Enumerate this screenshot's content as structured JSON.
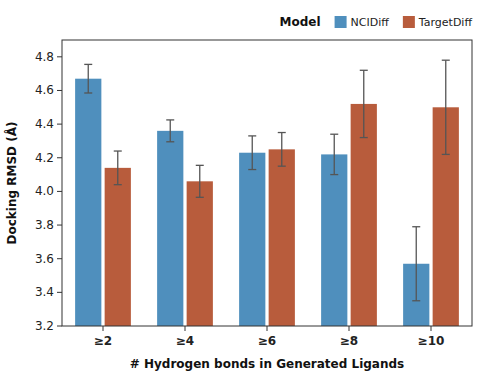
{
  "chart_data": {
    "type": "bar",
    "xlabel": "# Hydrogen bonds in Generated Ligands",
    "ylabel": "Docking RMSD (Å)",
    "categories": [
      "≥2",
      "≥4",
      "≥6",
      "≥8",
      "≥10"
    ],
    "series": [
      {
        "name": "NCIDiff",
        "color": "#4f8fbd",
        "values": [
          4.67,
          4.36,
          4.23,
          4.22,
          3.57
        ],
        "errors": [
          0.085,
          0.065,
          0.1,
          0.12,
          0.22
        ]
      },
      {
        "name": "TargetDiff",
        "color": "#b85c3c",
        "values": [
          4.14,
          4.06,
          4.25,
          4.52,
          4.5
        ],
        "errors": [
          0.1,
          0.095,
          0.1,
          0.2,
          0.28
        ]
      }
    ],
    "ylim": [
      3.2,
      4.9
    ],
    "yticks": [
      3.2,
      3.4,
      3.6,
      3.8,
      {
        "value": 4.0,
        "label": "4.0"
      },
      4.2,
      4.4,
      4.6,
      4.8
    ],
    "legend_title": "Model",
    "legend": "upper right",
    "grid": false
  }
}
